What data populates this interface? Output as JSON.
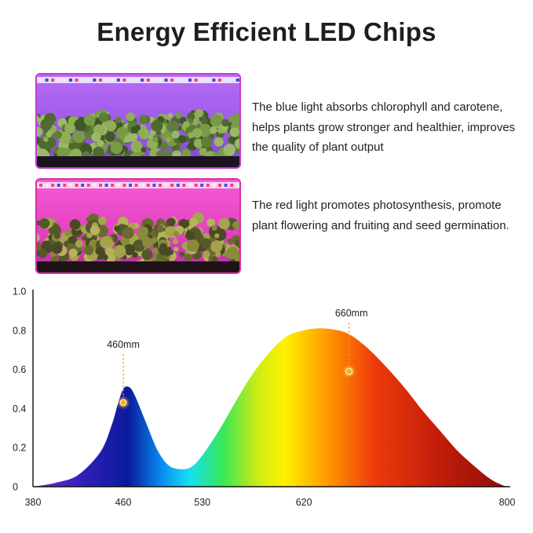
{
  "title": "Energy Efficient LED Chips",
  "panels": [
    {
      "description": "The blue light absorbs chlorophyll and carotene, helps plants grow stronger and healthier, improves the quality of plant output",
      "light_color": "#a35cf2"
    },
    {
      "description": "The red light promotes photosynthesis, promote plant flowering and fruiting and seed germination.",
      "light_color": "#f03fc8"
    }
  ],
  "chart_data": {
    "type": "area",
    "title": "",
    "xlabel": "",
    "ylabel": "",
    "x_ticks": [
      380,
      460,
      530,
      620,
      800
    ],
    "y_ticks": [
      0,
      0.2,
      0.4,
      0.6,
      0.8,
      1.0
    ],
    "y_tick_labels": [
      "0",
      "0.2",
      "0.4",
      "0.6",
      "0.8",
      "1.0"
    ],
    "xlim": [
      380,
      800
    ],
    "ylim": [
      0,
      1.0
    ],
    "grid": false,
    "series": [
      {
        "x": [
          380,
          400,
          420,
          440,
          450,
          455,
          460,
          465,
          470,
          480,
          490,
          500,
          510,
          520,
          530,
          545,
          560,
          575,
          590,
          605,
          620,
          635,
          650,
          660,
          670,
          680,
          695,
          710,
          725,
          740,
          755,
          770,
          785,
          795,
          800
        ],
        "y": [
          0.0,
          0.02,
          0.06,
          0.18,
          0.32,
          0.42,
          0.5,
          0.51,
          0.47,
          0.33,
          0.19,
          0.11,
          0.09,
          0.1,
          0.16,
          0.29,
          0.44,
          0.58,
          0.69,
          0.77,
          0.8,
          0.81,
          0.8,
          0.78,
          0.74,
          0.69,
          0.6,
          0.5,
          0.39,
          0.29,
          0.19,
          0.11,
          0.04,
          0.01,
          0.0
        ]
      }
    ],
    "annotations": [
      {
        "label": "460mm",
        "x": 460,
        "y": 0.43
      },
      {
        "label": "660mm",
        "x": 660,
        "y": 0.59
      }
    ],
    "gradient_stops": [
      {
        "offset": 0.0,
        "color": "#7b2bd0"
      },
      {
        "offset": 0.11,
        "color": "#2e1fb7"
      },
      {
        "offset": 0.2,
        "color": "#0a1a9a"
      },
      {
        "offset": 0.27,
        "color": "#0a8af0"
      },
      {
        "offset": 0.33,
        "color": "#15e0f0"
      },
      {
        "offset": 0.4,
        "color": "#36e85a"
      },
      {
        "offset": 0.47,
        "color": "#c8ec16"
      },
      {
        "offset": 0.53,
        "color": "#fff200"
      },
      {
        "offset": 0.62,
        "color": "#ff9a00"
      },
      {
        "offset": 0.72,
        "color": "#ee3a0c"
      },
      {
        "offset": 0.86,
        "color": "#c01c0a"
      },
      {
        "offset": 1.0,
        "color": "#8e0e08"
      }
    ]
  }
}
